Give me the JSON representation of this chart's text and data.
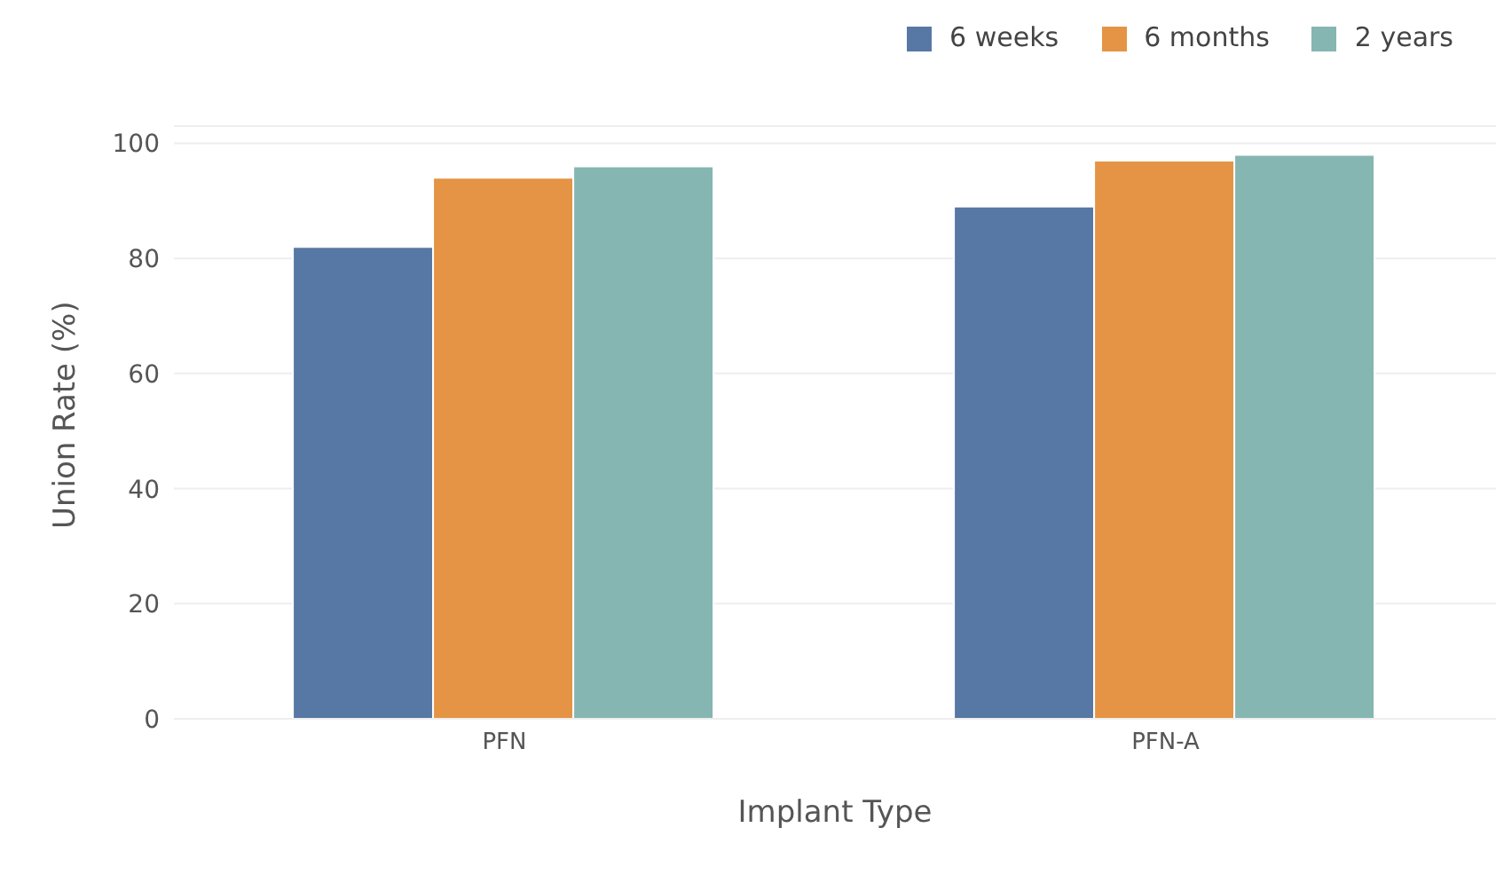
{
  "chart_data": {
    "type": "bar",
    "xlabel": "Implant Type",
    "ylabel": "Union Rate (%)",
    "categories": [
      "PFN",
      "PFN-A"
    ],
    "series": [
      {
        "name": "6 weeks",
        "color": "#5778a4",
        "values": [
          82,
          89
        ]
      },
      {
        "name": "6 months",
        "color": "#e49444",
        "values": [
          94,
          97
        ]
      },
      {
        "name": "2 years",
        "color": "#85b6b2",
        "values": [
          96,
          98
        ]
      }
    ],
    "ylim": [
      0,
      103
    ],
    "yticks": [
      0,
      20,
      40,
      60,
      80,
      100
    ],
    "grid": "y",
    "legend": "top right"
  }
}
